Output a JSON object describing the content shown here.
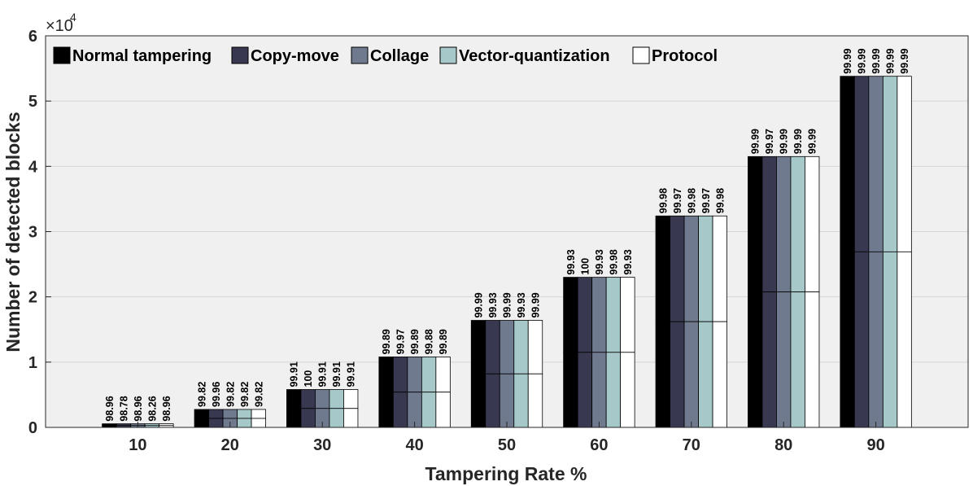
{
  "chart_data": {
    "type": "bar",
    "xlabel": "Tampering Rate %",
    "ylabel": "Number of detected blocks",
    "y_exponent_base": "×10",
    "y_exponent_power": "4",
    "ylim": [
      0,
      60000
    ],
    "yticks": [
      0,
      10000,
      20000,
      30000,
      40000,
      50000,
      60000
    ],
    "ytick_labels": [
      "0",
      "1",
      "2",
      "3",
      "4",
      "5",
      "6"
    ],
    "categories": [
      "10",
      "20",
      "30",
      "40",
      "50",
      "60",
      "70",
      "80",
      "90"
    ],
    "grid": "horizontal",
    "legend_position": "top-left",
    "stacked_note": "each bar split at half height",
    "series": [
      {
        "name": "Normal tampering",
        "color": "#000000",
        "values": [
          550,
          2750,
          5800,
          10800,
          16400,
          23000,
          32400,
          41500,
          53800
        ],
        "labels": [
          "98.96",
          "99.82",
          "99.91",
          "99.89",
          "99.99",
          "99.93",
          "99.98",
          "99.99",
          "99.99"
        ]
      },
      {
        "name": "Copy-move",
        "color": "#383850",
        "values": [
          550,
          2750,
          5800,
          10800,
          16400,
          23000,
          32400,
          41500,
          53800
        ],
        "labels": [
          "98.78",
          "99.96",
          "100",
          "99.97",
          "99.93",
          "100",
          "99.97",
          "99.97",
          "99.99"
        ]
      },
      {
        "name": "Collage",
        "color": "#6f7a8f",
        "values": [
          550,
          2750,
          5800,
          10800,
          16400,
          23000,
          32400,
          41500,
          53800
        ],
        "labels": [
          "98.96",
          "99.82",
          "99.91",
          "99.89",
          "99.99",
          "99.93",
          "99.98",
          "99.99",
          "99.99"
        ]
      },
      {
        "name": "Vector-quantization",
        "color": "#a7c8c8",
        "values": [
          550,
          2750,
          5800,
          10800,
          16400,
          23000,
          32400,
          41500,
          53800
        ],
        "labels": [
          "98.26",
          "99.82",
          "99.91",
          "99.88",
          "99.93",
          "99.98",
          "99.97",
          "99.99",
          "99.99"
        ]
      },
      {
        "name": "Protocol",
        "color": "#ffffff",
        "values": [
          550,
          2750,
          5800,
          10800,
          16400,
          23000,
          32400,
          41500,
          53800
        ],
        "labels": [
          "98.96",
          "99.82",
          "99.91",
          "99.89",
          "99.99",
          "99.93",
          "99.98",
          "99.99",
          "99.99"
        ]
      }
    ]
  }
}
